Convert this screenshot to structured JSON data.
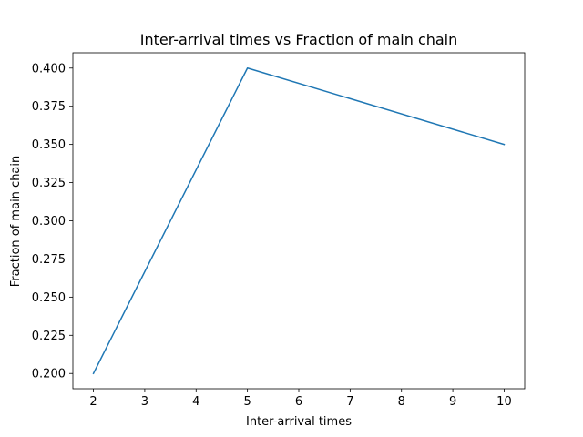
{
  "chart_data": {
    "type": "line",
    "title": "Inter-arrival times vs Fraction of main chain",
    "xlabel": "Inter-arrival times",
    "ylabel": "Fraction of main chain",
    "x": [
      2,
      5,
      10
    ],
    "series": [
      {
        "values": [
          0.2,
          0.4,
          0.35
        ],
        "color": "#1f77b4"
      }
    ],
    "xlim": [
      1.6,
      10.4
    ],
    "ylim": [
      0.19,
      0.41
    ],
    "xticks": [
      2,
      3,
      4,
      5,
      6,
      7,
      8,
      9,
      10
    ],
    "xtick_labels": [
      "2",
      "3",
      "4",
      "5",
      "6",
      "7",
      "8",
      "9",
      "10"
    ],
    "yticks": [
      0.2,
      0.225,
      0.25,
      0.275,
      0.3,
      0.325,
      0.35,
      0.375,
      0.4
    ],
    "ytick_labels": [
      "0.200",
      "0.225",
      "0.250",
      "0.275",
      "0.300",
      "0.325",
      "0.350",
      "0.375",
      "0.400"
    ],
    "grid": false,
    "legend": "none"
  }
}
